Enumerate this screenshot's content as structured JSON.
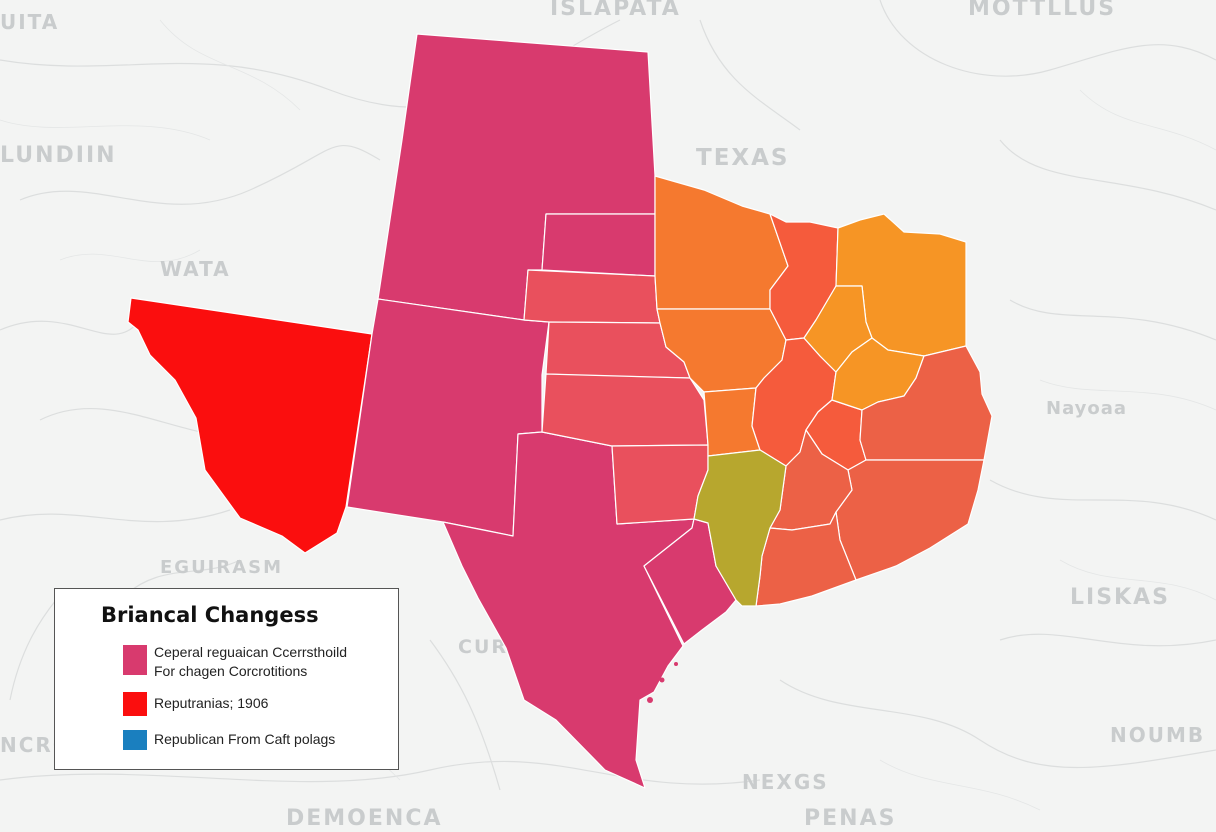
{
  "map": {
    "background_labels": [
      {
        "id": "islapata",
        "text": "ISLAPATA"
      },
      {
        "id": "motillus",
        "text": "MOTTLLUS"
      },
      {
        "id": "uita",
        "text": "UITA"
      },
      {
        "id": "lundiin",
        "text": "LUNDIIN"
      },
      {
        "id": "texas",
        "text": "TEXAS"
      },
      {
        "id": "wata",
        "text": "WATA"
      },
      {
        "id": "nayoaa",
        "text": "Nayoaa"
      },
      {
        "id": "eguirasm",
        "text": "EGUIRASM"
      },
      {
        "id": "liskas",
        "text": "LISKAS"
      },
      {
        "id": "cur",
        "text": "CUR"
      },
      {
        "id": "ncrc",
        "text": "NCRC"
      },
      {
        "id": "noumb",
        "text": "NOUMB"
      },
      {
        "id": "nexgs",
        "text": "NEXGS"
      },
      {
        "id": "demoenca",
        "text": "DEMOENCA"
      },
      {
        "id": "penas",
        "text": "PENAS"
      }
    ],
    "colors": {
      "magenta": "#d83a6e",
      "red": "#fb0e0e",
      "rose": "#e9505d",
      "orange": "#f5792f",
      "amber": "#f69525",
      "tomato": "#f55b3c",
      "coral": "#ec6146",
      "olive": "#b7a72e",
      "blue": "#1a7fbf"
    }
  },
  "legend": {
    "title": "Briancal Changess",
    "items": [
      {
        "color": "#d83a6e",
        "lines": [
          "Ceperal reguaican Ccerrsthoild",
          "For chagen Corcrotitions"
        ]
      },
      {
        "color": "#fb0e0e",
        "lines": [
          "Reputranias; 1906"
        ]
      },
      {
        "color": "#1a7fbf",
        "lines": [
          "Republican From Caft polags"
        ]
      }
    ]
  }
}
